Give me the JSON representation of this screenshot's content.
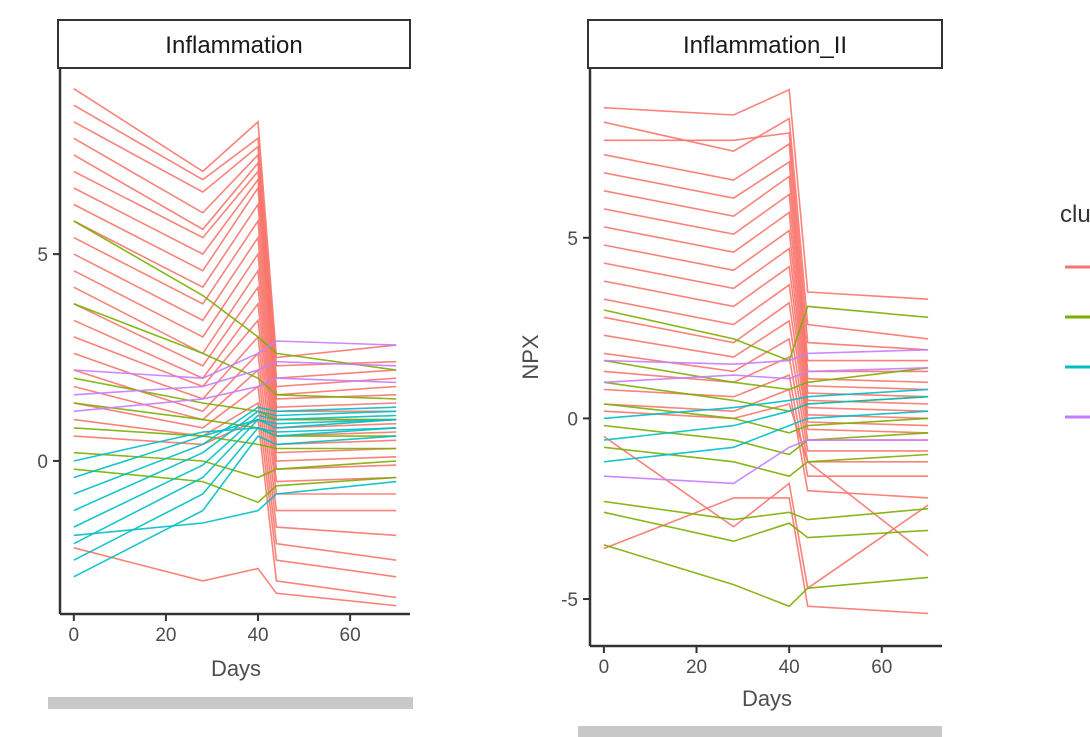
{
  "chart_data": [
    {
      "type": "line",
      "title": "Inflammation",
      "xlabel": "Days",
      "ylabel": "",
      "xlim": [
        -3,
        73
      ],
      "ylim": [
        -3.7,
        9.5
      ],
      "x_ticks": [
        0,
        20,
        40,
        60
      ],
      "y_ticks": [
        0,
        5
      ],
      "grid": false,
      "x": [
        0,
        28,
        40,
        44,
        70
      ],
      "cluster_colors": [
        "#F8766D",
        "#7CAE00",
        "#00BFC4",
        "#C77CFF"
      ],
      "series": [
        {
          "cluster": 1,
          "values": [
            9.0,
            7.0,
            8.2,
            2.5,
            2.8
          ]
        },
        {
          "cluster": 1,
          "values": [
            8.6,
            6.8,
            7.8,
            2.3,
            2.4
          ]
        },
        {
          "cluster": 1,
          "values": [
            8.2,
            6.5,
            7.6,
            2.0,
            2.2
          ]
        },
        {
          "cluster": 1,
          "values": [
            7.8,
            6.0,
            7.4,
            1.8,
            2.0
          ]
        },
        {
          "cluster": 1,
          "values": [
            7.4,
            5.6,
            7.2,
            1.6,
            1.8
          ]
        },
        {
          "cluster": 1,
          "values": [
            7.0,
            5.4,
            7.0,
            1.5,
            1.6
          ]
        },
        {
          "cluster": 1,
          "values": [
            6.6,
            5.0,
            6.8,
            1.3,
            1.4
          ]
        },
        {
          "cluster": 1,
          "values": [
            6.2,
            4.6,
            6.6,
            1.2,
            1.2
          ]
        },
        {
          "cluster": 1,
          "values": [
            5.8,
            4.2,
            6.2,
            1.0,
            1.0
          ]
        },
        {
          "cluster": 1,
          "values": [
            5.4,
            3.8,
            5.8,
            0.8,
            0.9
          ]
        },
        {
          "cluster": 1,
          "values": [
            5.0,
            3.4,
            5.4,
            0.6,
            0.7
          ]
        },
        {
          "cluster": 1,
          "values": [
            4.6,
            3.0,
            5.0,
            0.4,
            0.5
          ]
        },
        {
          "cluster": 1,
          "values": [
            4.2,
            2.6,
            4.6,
            0.2,
            0.3
          ]
        },
        {
          "cluster": 1,
          "values": [
            3.8,
            2.3,
            4.2,
            0.0,
            0.1
          ]
        },
        {
          "cluster": 1,
          "values": [
            3.4,
            2.0,
            3.8,
            -0.2,
            -0.1
          ]
        },
        {
          "cluster": 1,
          "values": [
            3.0,
            1.8,
            3.4,
            -0.5,
            -0.4
          ]
        },
        {
          "cluster": 1,
          "values": [
            2.6,
            1.5,
            3.0,
            -0.8,
            -0.8
          ]
        },
        {
          "cluster": 1,
          "values": [
            2.2,
            1.2,
            2.6,
            -1.2,
            -1.2
          ]
        },
        {
          "cluster": 1,
          "values": [
            1.8,
            1.0,
            2.2,
            -1.6,
            -1.8
          ]
        },
        {
          "cluster": 1,
          "values": [
            1.4,
            0.8,
            1.8,
            -2.0,
            -2.4
          ]
        },
        {
          "cluster": 1,
          "values": [
            1.0,
            0.6,
            1.4,
            -2.4,
            -2.8
          ]
        },
        {
          "cluster": 1,
          "values": [
            0.6,
            0.4,
            1.0,
            -2.9,
            -3.3
          ]
        },
        {
          "cluster": 1,
          "values": [
            -2.1,
            -2.9,
            -2.6,
            -3.2,
            -3.5
          ]
        },
        {
          "cluster": 2,
          "values": [
            5.8,
            4.0,
            3.0,
            2.6,
            2.2
          ]
        },
        {
          "cluster": 2,
          "values": [
            3.8,
            2.6,
            2.0,
            1.6,
            1.5
          ]
        },
        {
          "cluster": 2,
          "values": [
            2.0,
            1.4,
            1.2,
            1.0,
            1.0
          ]
        },
        {
          "cluster": 2,
          "values": [
            1.4,
            1.0,
            0.8,
            0.6,
            0.6
          ]
        },
        {
          "cluster": 2,
          "values": [
            0.8,
            0.6,
            0.4,
            0.3,
            0.3
          ]
        },
        {
          "cluster": 2,
          "values": [
            0.2,
            0.0,
            -0.4,
            -0.2,
            0.0
          ]
        },
        {
          "cluster": 2,
          "values": [
            -0.2,
            -0.5,
            -1.0,
            -0.6,
            -0.4
          ]
        },
        {
          "cluster": 3,
          "values": [
            -2.8,
            -1.2,
            0.6,
            0.4,
            0.6
          ]
        },
        {
          "cluster": 3,
          "values": [
            -2.4,
            -0.8,
            0.8,
            0.6,
            0.8
          ]
        },
        {
          "cluster": 3,
          "values": [
            -2.0,
            -0.4,
            1.0,
            0.8,
            1.0
          ]
        },
        {
          "cluster": 3,
          "values": [
            -1.6,
            -0.1,
            1.1,
            1.0,
            1.1
          ]
        },
        {
          "cluster": 3,
          "values": [
            -1.2,
            0.2,
            1.2,
            1.1,
            1.2
          ]
        },
        {
          "cluster": 3,
          "values": [
            -0.8,
            0.4,
            1.3,
            1.2,
            1.3
          ]
        },
        {
          "cluster": 3,
          "values": [
            -0.4,
            0.6,
            1.0,
            0.9,
            1.0
          ]
        },
        {
          "cluster": 3,
          "values": [
            0.0,
            0.7,
            0.8,
            0.7,
            0.8
          ]
        },
        {
          "cluster": 3,
          "values": [
            -1.8,
            -1.5,
            -1.2,
            -0.8,
            -0.5
          ]
        },
        {
          "cluster": 4,
          "values": [
            2.2,
            2.0,
            2.6,
            2.9,
            2.8
          ]
        },
        {
          "cluster": 4,
          "values": [
            1.6,
            1.8,
            2.2,
            2.4,
            2.3
          ]
        },
        {
          "cluster": 4,
          "values": [
            1.2,
            1.5,
            1.8,
            2.0,
            1.9
          ]
        }
      ]
    },
    {
      "type": "line",
      "title": "Inflammation_II",
      "xlabel": "Days",
      "ylabel": "NPX",
      "xlim": [
        -3,
        73
      ],
      "ylim": [
        -6.3,
        9.7
      ],
      "x_ticks": [
        0,
        20,
        40,
        60
      ],
      "y_ticks": [
        -5,
        0,
        5
      ],
      "grid": false,
      "x": [
        0,
        28,
        40,
        44,
        70
      ],
      "cluster_colors": [
        "#F8766D",
        "#7CAE00",
        "#00BFC4",
        "#C77CFF"
      ],
      "series": [
        {
          "cluster": 1,
          "values": [
            8.6,
            8.4,
            9.1,
            3.5,
            3.3
          ]
        },
        {
          "cluster": 1,
          "values": [
            8.2,
            7.4,
            8.3,
            2.6,
            2.2
          ]
        },
        {
          "cluster": 1,
          "values": [
            7.7,
            7.7,
            7.9,
            2.1,
            1.9
          ]
        },
        {
          "cluster": 1,
          "values": [
            7.3,
            6.6,
            7.6,
            1.6,
            1.6
          ]
        },
        {
          "cluster": 1,
          "values": [
            6.8,
            6.1,
            7.1,
            1.3,
            1.3
          ]
        },
        {
          "cluster": 1,
          "values": [
            6.3,
            5.6,
            6.7,
            1.1,
            1.0
          ]
        },
        {
          "cluster": 1,
          "values": [
            5.8,
            5.1,
            6.2,
            0.9,
            0.8
          ]
        },
        {
          "cluster": 1,
          "values": [
            5.3,
            4.6,
            5.7,
            0.7,
            0.6
          ]
        },
        {
          "cluster": 1,
          "values": [
            4.8,
            4.1,
            5.2,
            0.5,
            0.4
          ]
        },
        {
          "cluster": 1,
          "values": [
            4.3,
            3.6,
            4.7,
            0.3,
            0.2
          ]
        },
        {
          "cluster": 1,
          "values": [
            3.8,
            3.1,
            4.2,
            0.1,
            0.0
          ]
        },
        {
          "cluster": 1,
          "values": [
            3.3,
            2.6,
            3.7,
            -0.1,
            -0.2
          ]
        },
        {
          "cluster": 1,
          "values": [
            2.8,
            2.1,
            3.2,
            -0.3,
            -0.4
          ]
        },
        {
          "cluster": 1,
          "values": [
            2.3,
            1.7,
            2.7,
            -0.6,
            -0.6
          ]
        },
        {
          "cluster": 1,
          "values": [
            1.8,
            1.3,
            2.2,
            -0.9,
            -0.9
          ]
        },
        {
          "cluster": 1,
          "values": [
            1.3,
            1.0,
            1.7,
            -1.2,
            -1.2
          ]
        },
        {
          "cluster": 1,
          "values": [
            0.8,
            0.6,
            1.2,
            -1.6,
            -1.6
          ]
        },
        {
          "cluster": 1,
          "values": [
            0.4,
            0.2,
            0.8,
            -2.0,
            -2.2
          ]
        },
        {
          "cluster": 1,
          "values": [
            -0.5,
            -3.0,
            -1.8,
            -4.7,
            -2.4
          ]
        },
        {
          "cluster": 1,
          "values": [
            -3.6,
            -2.2,
            -2.2,
            -5.2,
            -5.4
          ]
        },
        {
          "cluster": 1,
          "values": [
            0.2,
            0.0,
            0.4,
            -1.2,
            -3.8
          ]
        },
        {
          "cluster": 2,
          "values": [
            3.0,
            2.2,
            1.6,
            3.1,
            2.8
          ]
        },
        {
          "cluster": 2,
          "values": [
            1.6,
            1.0,
            0.8,
            1.0,
            1.4
          ]
        },
        {
          "cluster": 2,
          "values": [
            1.0,
            0.5,
            0.2,
            0.4,
            0.6
          ]
        },
        {
          "cluster": 2,
          "values": [
            0.4,
            0.0,
            -0.4,
            -0.2,
            0.0
          ]
        },
        {
          "cluster": 2,
          "values": [
            -0.2,
            -0.6,
            -1.0,
            -0.6,
            -0.4
          ]
        },
        {
          "cluster": 2,
          "values": [
            -0.8,
            -1.2,
            -1.6,
            -1.2,
            -1.0
          ]
        },
        {
          "cluster": 2,
          "values": [
            -2.3,
            -2.8,
            -2.6,
            -2.8,
            -2.5
          ]
        },
        {
          "cluster": 2,
          "values": [
            -2.6,
            -3.4,
            -2.9,
            -3.3,
            -3.1
          ]
        },
        {
          "cluster": 2,
          "values": [
            -3.5,
            -4.6,
            -5.2,
            -4.7,
            -4.4
          ]
        },
        {
          "cluster": 3,
          "values": [
            -1.2,
            -0.8,
            -0.2,
            0.0,
            0.2
          ]
        },
        {
          "cluster": 3,
          "values": [
            -0.6,
            -0.2,
            0.2,
            0.4,
            0.6
          ]
        },
        {
          "cluster": 3,
          "values": [
            0.0,
            0.3,
            0.5,
            0.6,
            0.8
          ]
        },
        {
          "cluster": 4,
          "values": [
            -1.6,
            -1.8,
            -0.8,
            -0.6,
            -0.6
          ]
        },
        {
          "cluster": 4,
          "values": [
            1.6,
            1.5,
            1.6,
            1.8,
            1.9
          ]
        },
        {
          "cluster": 4,
          "values": [
            1.0,
            1.2,
            1.1,
            1.3,
            1.4
          ]
        }
      ]
    }
  ],
  "legend": {
    "title": "clu",
    "placement": "right",
    "keys": [
      {
        "color": "#F8766D"
      },
      {
        "color": "#7CAE00"
      },
      {
        "color": "#00BFC4"
      },
      {
        "color": "#C77CFF"
      }
    ]
  }
}
